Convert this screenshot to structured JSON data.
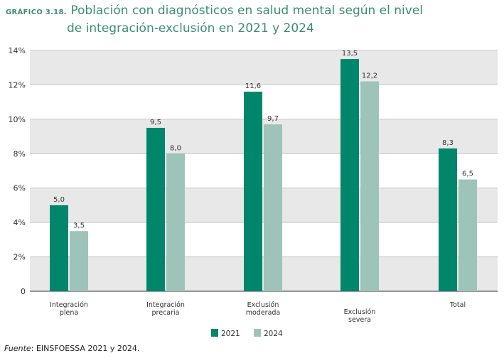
{
  "header": {
    "label": "GRÁFICO 3.18.",
    "title_line1": "Población con diagnósticos en salud mental según el nivel",
    "title_line2": "de integración-exclusión en 2021 y 2024"
  },
  "source": {
    "prefix": "Fuente",
    "text": ": EINSFOESSA 2021 y 2024."
  },
  "colors": {
    "s2021": "#00866b",
    "s2024": "#9ec4b9",
    "band": "#e8e8e8",
    "title": "#3b8d73"
  },
  "chart_data": {
    "type": "bar",
    "title": "Población con diagnósticos en salud mental según el nivel de integración-exclusión en 2021 y 2024",
    "categories": [
      [
        "Integración",
        "plena"
      ],
      [
        "Integración",
        "precaria"
      ],
      [
        "Exclusión",
        "moderada"
      ],
      [
        "Exclusión",
        "severa"
      ],
      [
        "Total"
      ]
    ],
    "series": [
      {
        "name": "2021",
        "values": [
          5.0,
          9.5,
          11.6,
          13.5,
          8.3
        ]
      },
      {
        "name": "2024",
        "values": [
          3.5,
          8.0,
          9.7,
          12.2,
          6.5
        ]
      }
    ],
    "yticks": [
      "0",
      "2%",
      "4%",
      "6%",
      "8%",
      "10%",
      "12%",
      "14%"
    ],
    "ylim": [
      0,
      14
    ],
    "legend": "bottom-center"
  }
}
